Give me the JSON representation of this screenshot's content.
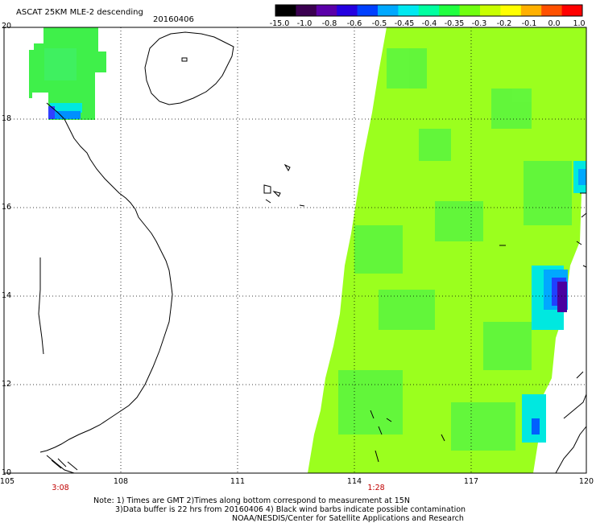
{
  "header": {
    "title": "ASCAT 25KM MLE-2 descending",
    "date": "20160406"
  },
  "colorbar": {
    "labels": [
      "-15.0",
      "-1.0",
      "-0.8",
      "-0.6",
      "-0.5",
      "-0.45",
      "-0.4",
      "-0.35",
      "-0.3",
      "-0.2",
      "-0.1",
      "0.0",
      "1.0"
    ],
    "colors": [
      "#000000",
      "#3a0050",
      "#5a00a8",
      "#2400e0",
      "#0040ff",
      "#00a8ff",
      "#00e8f0",
      "#00ffa0",
      "#20ff40",
      "#70ff10",
      "#c8ff00",
      "#ffff00",
      "#ffb000",
      "#ff5000",
      "#ff0000"
    ]
  },
  "axes": {
    "lat_labels": [
      "20",
      "18",
      "16",
      "14",
      "12",
      "10"
    ],
    "lon_labels": [
      "105",
      "108",
      "111",
      "114",
      "117",
      "120"
    ],
    "pass_times": [
      "3:08",
      "1:28"
    ],
    "pass_time_color": "#c00000"
  },
  "notes": {
    "line1": "Note: 1) Times are GMT 2)Times along bottom correspond to measurement at 15N",
    "line2": "3)Data buffer is 22 hrs from 20160406 4) Black wind barbs indicate possible contamination",
    "line3": "NOAA/NESDIS/Center for Satellite Applications and Research"
  }
}
